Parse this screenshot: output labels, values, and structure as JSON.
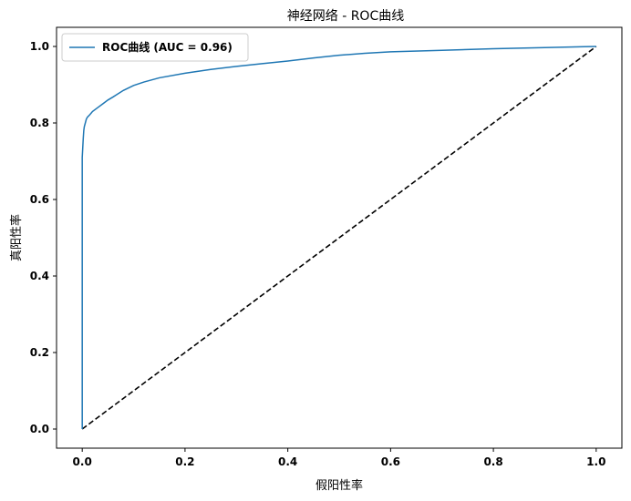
{
  "chart_data": {
    "type": "line",
    "title": "神经网络 - ROC曲线",
    "xlabel": "假阳性率",
    "ylabel": "真阳性率",
    "xlim": [
      -0.05,
      1.05
    ],
    "ylim": [
      -0.05,
      1.05
    ],
    "xticks": [
      0.0,
      0.2,
      0.4,
      0.6,
      0.8,
      1.0
    ],
    "yticks": [
      0.0,
      0.2,
      0.4,
      0.6,
      0.8,
      1.0
    ],
    "xtick_labels": [
      "0.0",
      "0.2",
      "0.4",
      "0.6",
      "0.8",
      "1.0"
    ],
    "ytick_labels": [
      "0.0",
      "0.2",
      "0.4",
      "0.6",
      "0.8",
      "1.0"
    ],
    "grid": false,
    "legend_position": "top-left",
    "series": [
      {
        "name": "ROC曲线 (AUC = 0.96)",
        "color": "#1f77b4",
        "style": "solid",
        "x": [
          0.0,
          0.0,
          0.002,
          0.003,
          0.004,
          0.006,
          0.008,
          0.01,
          0.015,
          0.02,
          0.03,
          0.04,
          0.05,
          0.06,
          0.08,
          0.1,
          0.12,
          0.15,
          0.2,
          0.25,
          0.3,
          0.35,
          0.4,
          0.45,
          0.5,
          0.55,
          0.6,
          0.7,
          0.8,
          0.9,
          1.0
        ],
        "y": [
          0.0,
          0.71,
          0.76,
          0.78,
          0.79,
          0.8,
          0.81,
          0.815,
          0.822,
          0.83,
          0.84,
          0.85,
          0.86,
          0.868,
          0.885,
          0.898,
          0.907,
          0.918,
          0.93,
          0.94,
          0.948,
          0.955,
          0.962,
          0.97,
          0.977,
          0.982,
          0.986,
          0.99,
          0.994,
          0.997,
          1.0
        ]
      },
      {
        "name": "",
        "color": "#000000",
        "style": "dashed",
        "x": [
          0.0,
          1.0
        ],
        "y": [
          0.0,
          1.0
        ]
      }
    ]
  }
}
